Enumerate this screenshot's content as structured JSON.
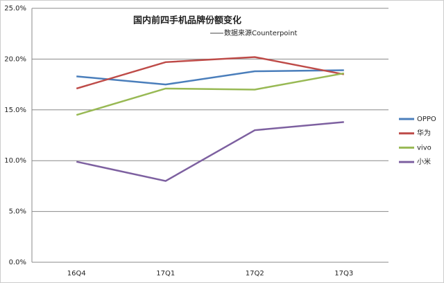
{
  "chart_data": {
    "type": "line",
    "title": "国内前四手机品牌份额变化",
    "subtitle": "数据来源Counterpoint",
    "categories": [
      "16Q4",
      "17Q1",
      "17Q2",
      "17Q3"
    ],
    "series": [
      {
        "name": "OPPO",
        "color": "#4a7ebb",
        "values": [
          18.3,
          17.5,
          18.8,
          18.9
        ]
      },
      {
        "name": "华为",
        "color": "#be4b48",
        "values": [
          17.1,
          19.7,
          20.2,
          18.5
        ]
      },
      {
        "name": "vivo",
        "color": "#98b954",
        "values": [
          14.5,
          17.1,
          17.0,
          18.6
        ]
      },
      {
        "name": "小米",
        "color": "#7d60a0",
        "values": [
          9.9,
          8.0,
          13.0,
          13.8
        ]
      }
    ],
    "ylim": [
      0,
      25
    ],
    "yticks": [
      {
        "value": 0,
        "label": "0.0%"
      },
      {
        "value": 5,
        "label": "5.0%"
      },
      {
        "value": 10,
        "label": "10.0%"
      },
      {
        "value": 15,
        "label": "15.0%"
      },
      {
        "value": 20,
        "label": "20.0%"
      },
      {
        "value": 25,
        "label": "25.0%"
      }
    ],
    "grid": true,
    "legend": "right"
  }
}
